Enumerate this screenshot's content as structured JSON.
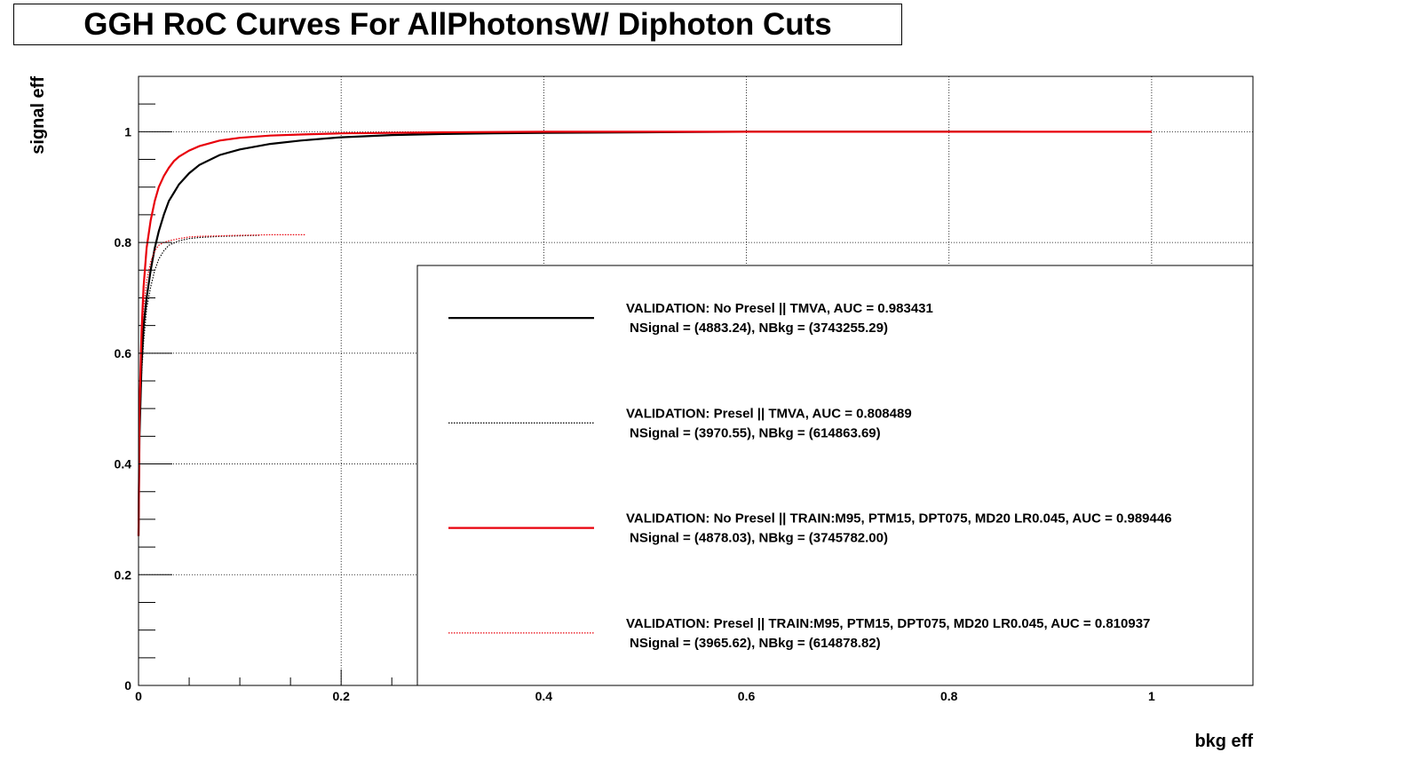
{
  "chart_data": {
    "type": "line",
    "title": "GGH RoC Curves For AllPhotonsW/ Diphoton Cuts",
    "xlabel": "bkg eff",
    "ylabel": "signal eff",
    "xlim": [
      0,
      1.1
    ],
    "ylim": [
      0,
      1.1
    ],
    "grid": true,
    "legend_position": "bottom-right",
    "x_ticks": [
      0,
      0.2,
      0.4,
      0.6,
      0.8,
      1
    ],
    "x_tick_labels": [
      "0",
      "0.2",
      "0.4",
      "0.6",
      "0.8",
      "1"
    ],
    "y_ticks": [
      0,
      0.2,
      0.4,
      0.6,
      0.8,
      1
    ],
    "y_tick_labels": [
      "0",
      "0.2",
      "0.4",
      "0.6",
      "0.8",
      "1"
    ],
    "series": [
      {
        "name": "VALIDATION: No Presel || TMVA, AUC = 0.983431",
        "stats": "NSignal = (4883.24), NBkg = (3743255.29)",
        "color": "#000000",
        "style": "solid",
        "x": [
          0,
          0.001,
          0.003,
          0.005,
          0.008,
          0.012,
          0.016,
          0.02,
          0.025,
          0.03,
          0.035,
          0.04,
          0.05,
          0.06,
          0.08,
          0.1,
          0.13,
          0.16,
          0.2,
          0.25,
          0.3,
          0.35,
          0.4,
          0.5,
          0.6,
          0.7,
          0.8,
          0.87
        ],
        "y": [
          0.27,
          0.45,
          0.58,
          0.65,
          0.7,
          0.75,
          0.79,
          0.82,
          0.85,
          0.875,
          0.89,
          0.905,
          0.925,
          0.94,
          0.958,
          0.968,
          0.978,
          0.984,
          0.99,
          0.994,
          0.996,
          0.997,
          0.998,
          0.999,
          1.0,
          1.0,
          1.0,
          1.0
        ]
      },
      {
        "name": "VALIDATION: Presel || TMVA, AUC = 0.808489",
        "stats": "NSignal = (3970.55), NBkg = (614863.69)",
        "color": "#000000",
        "style": "dotted",
        "x": [
          0,
          0.001,
          0.003,
          0.005,
          0.008,
          0.012,
          0.016,
          0.02,
          0.025,
          0.03,
          0.04,
          0.05,
          0.06,
          0.08,
          0.1,
          0.12
        ],
        "y": [
          0.27,
          0.45,
          0.56,
          0.62,
          0.68,
          0.72,
          0.75,
          0.77,
          0.785,
          0.795,
          0.803,
          0.807,
          0.809,
          0.811,
          0.812,
          0.813
        ]
      },
      {
        "name": "VALIDATION: No Presel || TRAIN:M95, PTM15, DPT075, MD20 LR0.045, AUC = 0.989446",
        "stats": "NSignal = (4878.03), NBkg = (3745782.00)",
        "color": "#e8000b",
        "style": "solid",
        "x": [
          0,
          0.001,
          0.003,
          0.005,
          0.008,
          0.012,
          0.016,
          0.02,
          0.025,
          0.03,
          0.035,
          0.04,
          0.05,
          0.06,
          0.08,
          0.1,
          0.13,
          0.16,
          0.2,
          0.25,
          0.3,
          0.4,
          0.5,
          0.6,
          0.8,
          1.0
        ],
        "y": [
          0.27,
          0.5,
          0.64,
          0.72,
          0.79,
          0.84,
          0.875,
          0.9,
          0.92,
          0.935,
          0.947,
          0.955,
          0.966,
          0.974,
          0.984,
          0.989,
          0.993,
          0.995,
          0.997,
          0.998,
          0.999,
          1.0,
          1.0,
          1.0,
          1.0,
          1.0
        ]
      },
      {
        "name": "VALIDATION: Presel || TRAIN:M95, PTM15, DPT075, MD20 LR0.045, AUC = 0.810937",
        "stats": "NSignal = (3965.62), NBkg = (614878.82)",
        "color": "#e8000b",
        "style": "dotted",
        "x": [
          0,
          0.001,
          0.003,
          0.005,
          0.008,
          0.012,
          0.016,
          0.02,
          0.025,
          0.03,
          0.04,
          0.05,
          0.06,
          0.08,
          0.1,
          0.13,
          0.165
        ],
        "y": [
          0.27,
          0.5,
          0.62,
          0.68,
          0.73,
          0.765,
          0.785,
          0.795,
          0.8,
          0.803,
          0.807,
          0.81,
          0.811,
          0.812,
          0.813,
          0.814,
          0.814
        ]
      }
    ]
  }
}
